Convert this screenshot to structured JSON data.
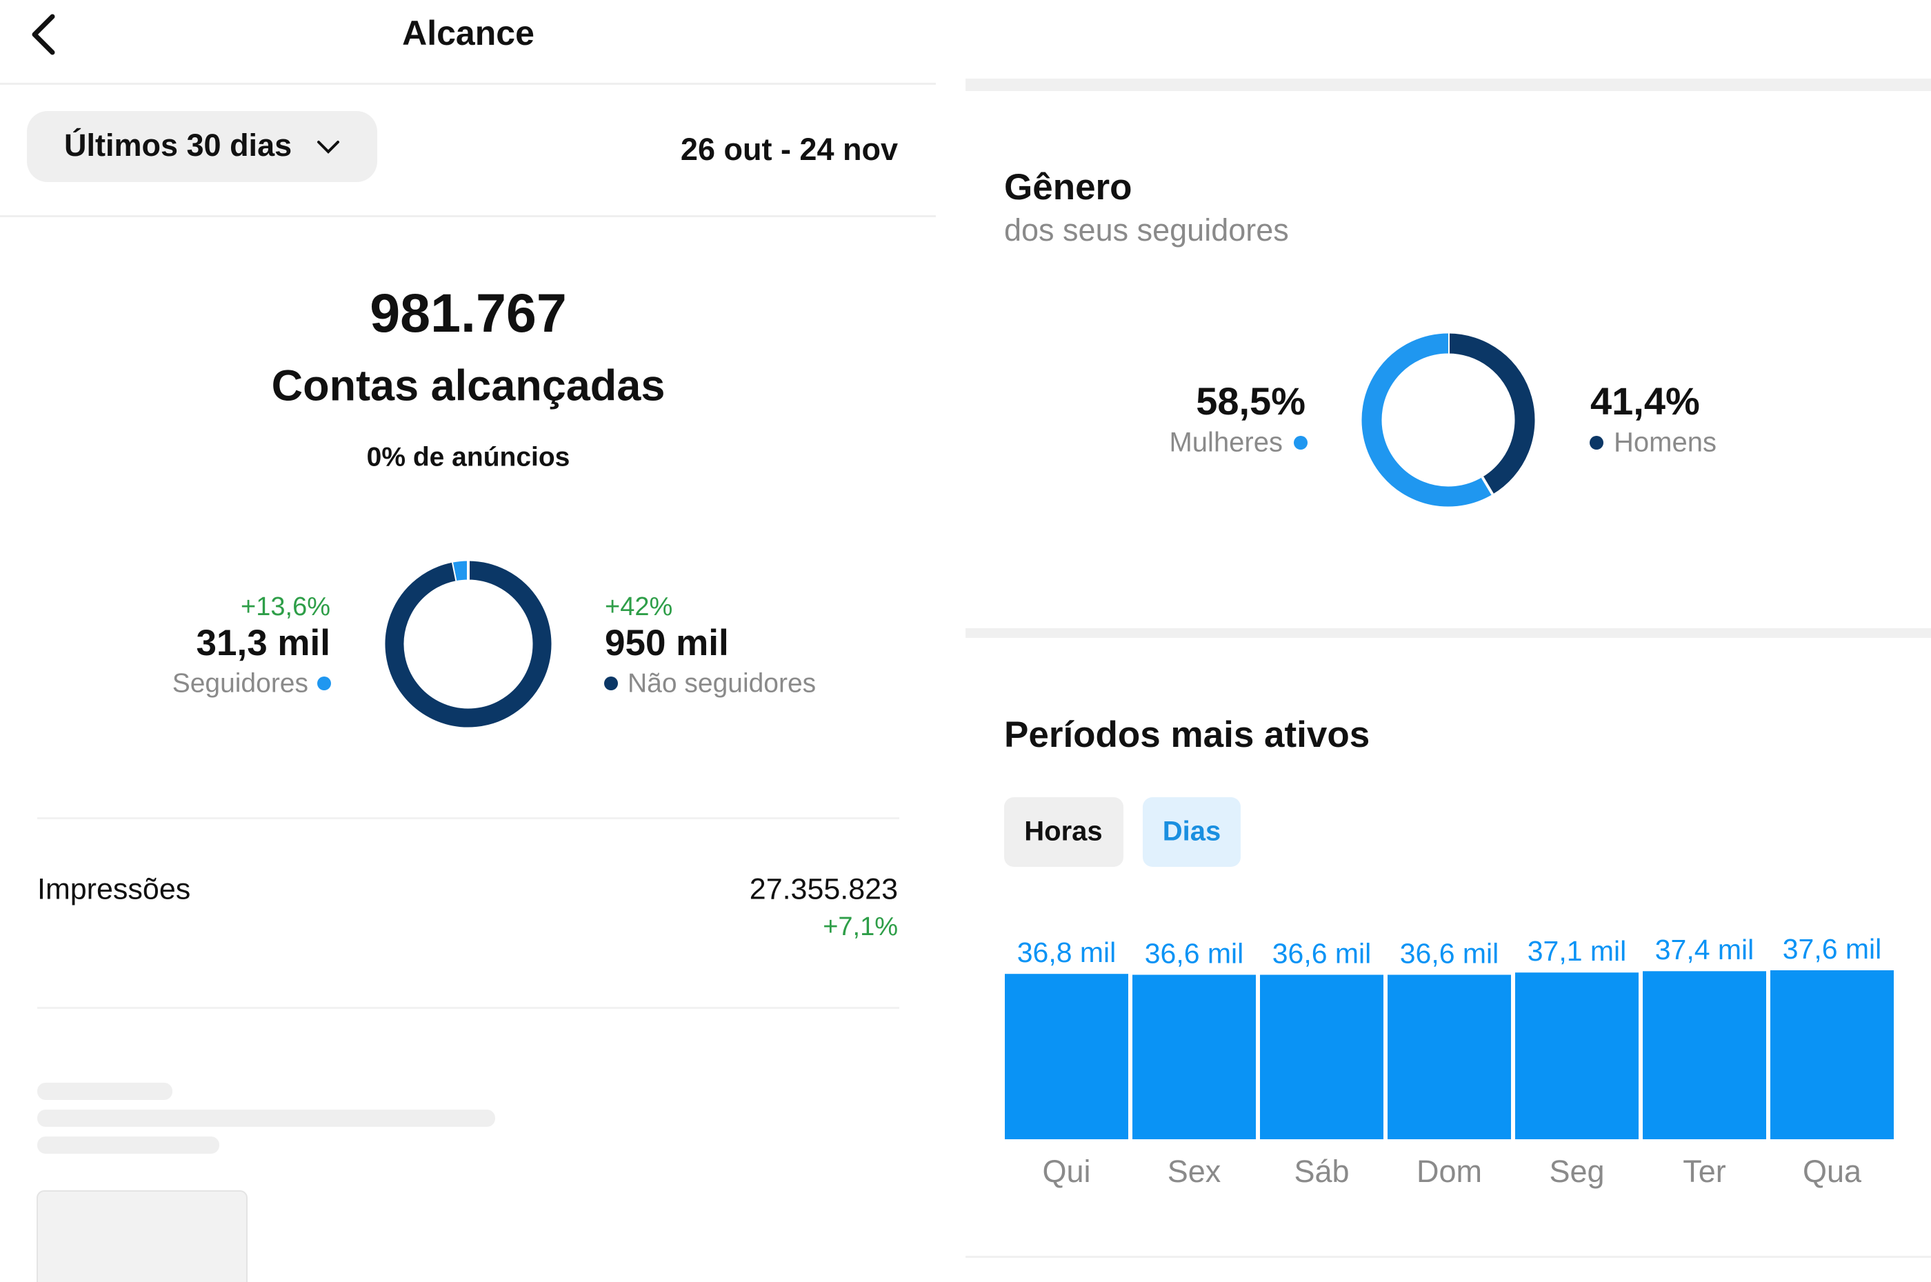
{
  "header": {
    "title": "Alcance"
  },
  "period": {
    "selector": "Últimos 30 dias",
    "range": "26 out - 24 nov"
  },
  "summary": {
    "value": "981.767",
    "label": "Contas alcançadas",
    "ads": "0% de anúncios"
  },
  "reach_chart": {
    "type": "donut",
    "series": [
      {
        "name": "Seguidores",
        "value": 31.3,
        "value_label": "31,3 mil",
        "change": "+13,6%",
        "color": "#1f97f0"
      },
      {
        "name": "Não seguidores",
        "value": 950,
        "value_label": "950 mil",
        "change": "+42%",
        "color": "#0b3766"
      }
    ]
  },
  "impressions": {
    "label": "Impressões",
    "value": "27.355.823",
    "change": "+7,1%"
  },
  "gender_chart": {
    "type": "donut",
    "title": "Gênero",
    "subtitle": "dos seus seguidores",
    "series": [
      {
        "name": "Mulheres",
        "value": 58.5,
        "value_label": "58,5%",
        "color": "#1f97f0"
      },
      {
        "name": "Homens",
        "value": 41.4,
        "value_label": "41,4%",
        "color": "#0b3766"
      }
    ]
  },
  "active_chart": {
    "type": "bar",
    "title": "Períodos mais ativos",
    "tabs": [
      "Horas",
      "Dias"
    ],
    "categories": [
      "Qui",
      "Sex",
      "Sáb",
      "Dom",
      "Seg",
      "Ter",
      "Qua"
    ],
    "values": [
      36.8,
      36.6,
      36.6,
      36.6,
      37.1,
      37.4,
      37.6
    ],
    "value_labels": [
      "36,8 mil",
      "36,6 mil",
      "36,6 mil",
      "36,6 mil",
      "37,1 mil",
      "37,4 mil",
      "37,6 mil"
    ],
    "color": "#0a93f5"
  }
}
